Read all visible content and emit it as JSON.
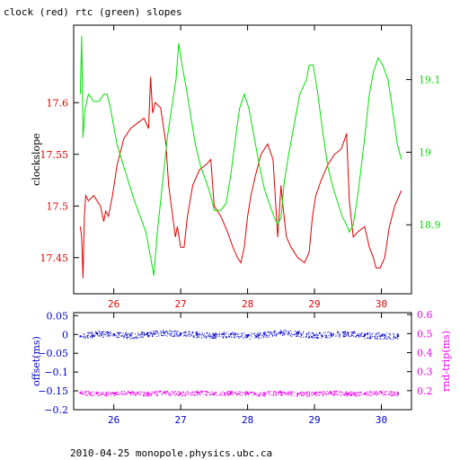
{
  "page": {
    "title": "clock (red) rtc (green) slopes",
    "footer": "2010-04-25  monopole.physics.ubc.ca"
  },
  "colors": {
    "clock": "#e00000",
    "rtc": "#00e000",
    "offset": "#0000cc",
    "rndtrip": "#ee00ee",
    "axis": "#000000"
  },
  "chart_data": [
    {
      "type": "line",
      "title": "clock (red) rtc (green) slopes",
      "xlabel": "",
      "ylabel": "clockslope",
      "y2label": "",
      "xlim": [
        25.4,
        30.45
      ],
      "ylim": [
        17.415,
        17.675
      ],
      "y2lim": [
        18.805,
        19.175
      ],
      "xticks": [
        26,
        27,
        28,
        29,
        30
      ],
      "yticks": [
        17.45,
        17.5,
        17.55,
        17.6
      ],
      "y2ticks": [
        18.9,
        19,
        19.1
      ],
      "series": [
        {
          "name": "clock",
          "axis": "left",
          "x": [
            25.5,
            25.52,
            25.54,
            25.56,
            25.58,
            25.62,
            25.7,
            25.8,
            25.85,
            25.88,
            25.92,
            25.98,
            26.05,
            26.15,
            26.25,
            26.35,
            26.45,
            26.52,
            26.55,
            26.58,
            26.62,
            26.7,
            26.78,
            26.82,
            26.88,
            26.92,
            26.95,
            27.0,
            27.05,
            27.1,
            27.18,
            27.28,
            27.38,
            27.45,
            27.5,
            27.6,
            27.7,
            27.78,
            27.85,
            27.9,
            27.95,
            28.0,
            28.05,
            28.12,
            28.2,
            28.3,
            28.38,
            28.45,
            28.5,
            28.52,
            28.58,
            28.65,
            28.75,
            28.85,
            28.92,
            28.97,
            29.02,
            29.1,
            29.2,
            29.3,
            29.4,
            29.48,
            29.52,
            29.58,
            29.65,
            29.75,
            29.82,
            29.88,
            29.92,
            29.98,
            30.05,
            30.12,
            30.2,
            30.3
          ],
          "y": [
            17.48,
            17.47,
            17.43,
            17.49,
            17.51,
            17.505,
            17.51,
            17.5,
            17.485,
            17.495,
            17.49,
            17.51,
            17.54,
            17.565,
            17.575,
            17.58,
            17.585,
            17.575,
            17.625,
            17.59,
            17.6,
            17.595,
            17.56,
            17.52,
            17.49,
            17.47,
            17.48,
            17.46,
            17.46,
            17.49,
            17.52,
            17.535,
            17.54,
            17.545,
            17.5,
            17.49,
            17.475,
            17.46,
            17.45,
            17.445,
            17.46,
            17.49,
            17.51,
            17.53,
            17.55,
            17.56,
            17.545,
            17.47,
            17.52,
            17.505,
            17.47,
            17.46,
            17.45,
            17.445,
            17.455,
            17.49,
            17.51,
            17.525,
            17.54,
            17.55,
            17.555,
            17.57,
            17.505,
            17.47,
            17.475,
            17.48,
            17.46,
            17.45,
            17.44,
            17.44,
            17.45,
            17.48,
            17.5,
            17.515
          ]
        },
        {
          "name": "rtc",
          "axis": "right",
          "x": [
            25.5,
            25.52,
            25.54,
            25.57,
            25.62,
            25.7,
            25.78,
            25.85,
            25.9,
            25.95,
            26.05,
            26.15,
            26.25,
            26.32,
            26.4,
            26.48,
            26.52,
            26.56,
            26.6,
            26.65,
            26.72,
            26.8,
            26.88,
            26.93,
            26.97,
            27.02,
            27.08,
            27.15,
            27.22,
            27.3,
            27.38,
            27.45,
            27.5,
            27.6,
            27.68,
            27.75,
            27.82,
            27.88,
            27.95,
            28.02,
            28.1,
            28.18,
            28.25,
            28.32,
            28.4,
            28.45,
            28.5,
            28.55,
            28.62,
            28.7,
            28.78,
            28.83,
            28.88,
            28.92,
            28.98,
            29.05,
            29.12,
            29.2,
            29.28,
            29.35,
            29.42,
            29.48,
            29.52,
            29.58,
            29.66,
            29.75,
            29.82,
            29.88,
            29.95,
            30.02,
            30.1,
            30.18,
            30.24,
            30.3
          ],
          "y": [
            19.08,
            19.16,
            19.02,
            19.06,
            19.08,
            19.07,
            19.07,
            19.08,
            19.08,
            19.06,
            19.01,
            18.98,
            18.95,
            18.93,
            18.91,
            18.89,
            18.87,
            18.85,
            18.83,
            18.89,
            18.95,
            19.02,
            19.07,
            19.1,
            19.15,
            19.12,
            19.09,
            19.05,
            19.01,
            18.98,
            18.96,
            18.94,
            18.92,
            18.92,
            18.93,
            18.97,
            19.02,
            19.06,
            19.08,
            19.06,
            19.02,
            18.98,
            18.95,
            18.93,
            18.91,
            18.9,
            18.91,
            18.96,
            19.0,
            19.04,
            19.08,
            19.09,
            19.1,
            19.12,
            19.12,
            19.08,
            19.03,
            18.98,
            18.95,
            18.93,
            18.91,
            18.9,
            18.89,
            18.9,
            18.95,
            19.02,
            19.08,
            19.11,
            19.13,
            19.12,
            19.1,
            19.05,
            19.01,
            18.99
          ]
        }
      ],
      "annotation": ""
    },
    {
      "type": "scatter",
      "title": "",
      "xlabel": "",
      "ylabel": "offset(ms)",
      "y2label": "rnd-trip(ms)",
      "xlim": [
        25.4,
        30.45
      ],
      "ylim": [
        -0.2,
        0.058
      ],
      "y2lim": [
        0.1,
        0.61
      ],
      "xticks": [
        26,
        27,
        28,
        29,
        30
      ],
      "yticks": [
        -0.2,
        -0.15,
        -0.1,
        -0.05,
        0,
        0.05
      ],
      "y2ticks": [
        0.2,
        0.3,
        0.4,
        0.5,
        0.6
      ],
      "ytick_labels": [
        "−0.2",
        "−0.15",
        "−0.1",
        "−0.05",
        "0",
        "0.05"
      ],
      "y2tick_labels": [
        "0.2",
        "0.3",
        "0.4",
        "0.5",
        "0.6"
      ],
      "series": [
        {
          "name": "offset",
          "axis": "left",
          "x": [
            25.5,
            25.75,
            26.0,
            26.25,
            26.5,
            26.75,
            27.0,
            27.25,
            27.5,
            27.75,
            28.0,
            28.25,
            28.5,
            28.75,
            29.0,
            29.25,
            29.5,
            29.75,
            30.0,
            30.25
          ],
          "y": [
            -0.005,
            0.003,
            0.0,
            -0.003,
            0.002,
            0.005,
            0.003,
            0.0,
            -0.002,
            0.001,
            -0.004,
            0.0,
            0.006,
            0.003,
            -0.002,
            0.0,
            0.004,
            -0.002,
            -0.003,
            -0.004
          ],
          "spread": 0.008
        },
        {
          "name": "rnd-trip",
          "axis": "right",
          "x": [
            25.5,
            25.75,
            26.0,
            26.25,
            26.5,
            26.75,
            27.0,
            27.25,
            27.5,
            27.75,
            28.0,
            28.25,
            28.5,
            28.75,
            29.0,
            29.25,
            29.5,
            29.75,
            30.0,
            30.25
          ],
          "y": [
            0.19,
            0.185,
            0.185,
            0.19,
            0.185,
            0.19,
            0.185,
            0.19,
            0.185,
            0.19,
            0.185,
            0.185,
            0.19,
            0.185,
            0.185,
            0.19,
            0.185,
            0.185,
            0.19,
            0.185
          ],
          "spread": 0.012
        }
      ]
    }
  ]
}
